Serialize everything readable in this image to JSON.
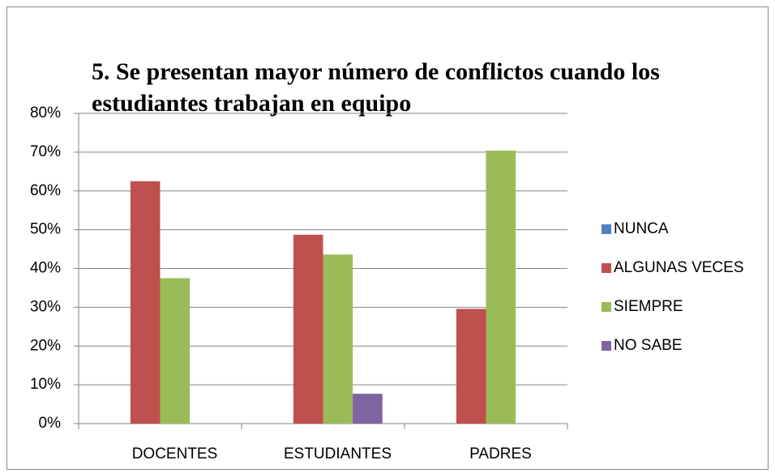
{
  "chart_data": {
    "type": "bar",
    "title": [
      "5. Se presentan mayor número de conflictos cuando los",
      "estudiantes trabajan en equipo"
    ],
    "categories": [
      "DOCENTES",
      "ESTUDIANTES",
      "PADRES"
    ],
    "series": [
      {
        "name": "NUNCA",
        "color": "#4f81bd",
        "values": [
          0,
          0,
          0
        ]
      },
      {
        "name": "ALGUNAS VECES",
        "color": "#c0504d",
        "values": [
          62.5,
          48.7,
          29.6
        ]
      },
      {
        "name": "SIEMPRE",
        "color": "#9bbb59",
        "values": [
          37.5,
          43.6,
          70.4
        ]
      },
      {
        "name": "NO SABE",
        "color": "#8064a2",
        "values": [
          0,
          7.7,
          0
        ]
      }
    ],
    "ylim": [
      0,
      80
    ],
    "yticks": [
      {
        "value": 0,
        "label": "0%"
      },
      {
        "value": 10,
        "label": "10%"
      },
      {
        "value": 20,
        "label": "20%"
      },
      {
        "value": 30,
        "label": "30%"
      },
      {
        "value": 40,
        "label": "40%"
      },
      {
        "value": 50,
        "label": "50%"
      },
      {
        "value": 60,
        "label": "60%"
      },
      {
        "value": 70,
        "label": "70%"
      },
      {
        "value": 80,
        "label": "80%"
      }
    ],
    "grid": true,
    "legend": "right"
  }
}
